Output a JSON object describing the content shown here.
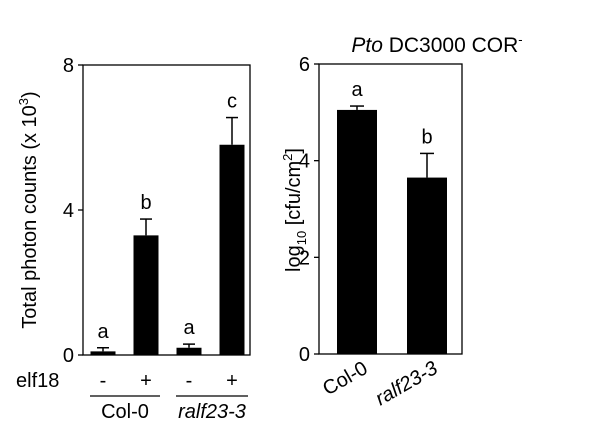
{
  "chart_data": [
    {
      "type": "bar",
      "ylabel_main": "Total photon counts (x 10",
      "ylabel_exp": "3",
      "ylabel_close": ")",
      "ylim": [
        0,
        8
      ],
      "yticks": [
        "0",
        "4",
        "8"
      ],
      "treatment_label": "elf18",
      "treatment_values": [
        "-",
        "+",
        "-",
        "+"
      ],
      "group_labels": [
        "Col-0",
        "ralf23-3"
      ],
      "groups": [
        0,
        0,
        1,
        1
      ],
      "values": [
        0.1,
        3.3,
        0.2,
        5.8
      ],
      "errors": [
        0.1,
        0.45,
        0.1,
        0.75
      ],
      "letters": [
        "a",
        "b",
        "a",
        "c"
      ],
      "colors": {
        "bar": "#000000"
      }
    },
    {
      "type": "bar",
      "title_italic": "Pto",
      "title_rest": " DC3000 COR",
      "title_sup": "-",
      "ylabel_pre": "log",
      "ylabel_sub": "10",
      "ylabel_mid": " [cfu/cm",
      "ylabel_sup": "2",
      "ylabel_close": "]",
      "ylim": [
        0,
        6
      ],
      "yticks": [
        "0",
        "2",
        "4",
        "6"
      ],
      "categories": [
        "Col-0",
        "ralf23-3"
      ],
      "values": [
        5.05,
        3.65
      ],
      "errors": [
        0.08,
        0.5
      ],
      "letters": [
        "a",
        "b"
      ],
      "colors": {
        "bar": "#000000"
      }
    }
  ]
}
